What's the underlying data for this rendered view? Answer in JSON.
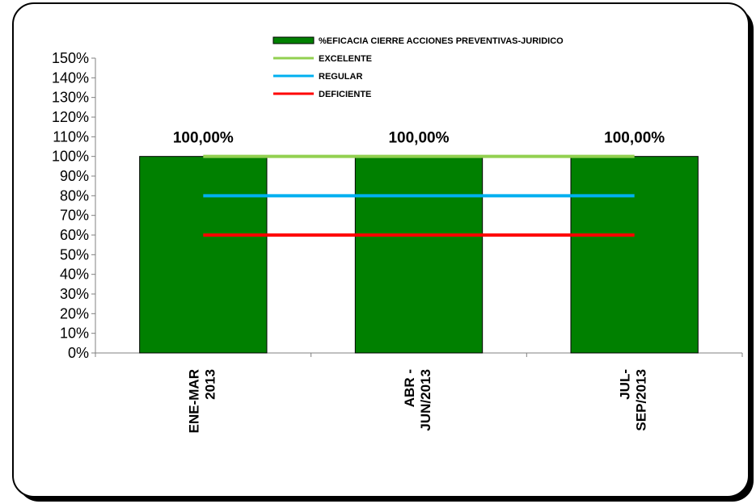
{
  "chart_data": {
    "type": "bar",
    "categories": [
      [
        "ENE-MAR",
        "2013"
      ],
      [
        "ABR -",
        "JUN/2013"
      ],
      [
        "JUL-",
        "SEP/2013"
      ]
    ],
    "ylim": [
      0,
      150
    ],
    "y_ticks": [
      "0%",
      "10%",
      "20%",
      "30%",
      "40%",
      "50%",
      "60%",
      "70%",
      "80%",
      "90%",
      "100%",
      "110%",
      "120%",
      "130%",
      "140%",
      "150%"
    ],
    "grid": false,
    "legend_position": "top",
    "series": [
      {
        "name": "%EFICACIA CIERRE ACCIONES PREVENTIVAS-JURIDICO",
        "kind": "bar",
        "color": "#008000",
        "values": [
          100,
          100,
          100
        ],
        "data_labels": [
          "100,00%",
          "100,00%",
          "100,00%"
        ]
      },
      {
        "name": "EXCELENTE",
        "kind": "line",
        "color": "#92d050",
        "values": [
          100,
          100,
          100
        ]
      },
      {
        "name": "REGULAR",
        "kind": "line",
        "color": "#00b0f0",
        "values": [
          80,
          80,
          80
        ]
      },
      {
        "name": "DEFICIENTE",
        "kind": "line",
        "color": "#ff0000",
        "values": [
          60,
          60,
          60
        ]
      }
    ]
  }
}
